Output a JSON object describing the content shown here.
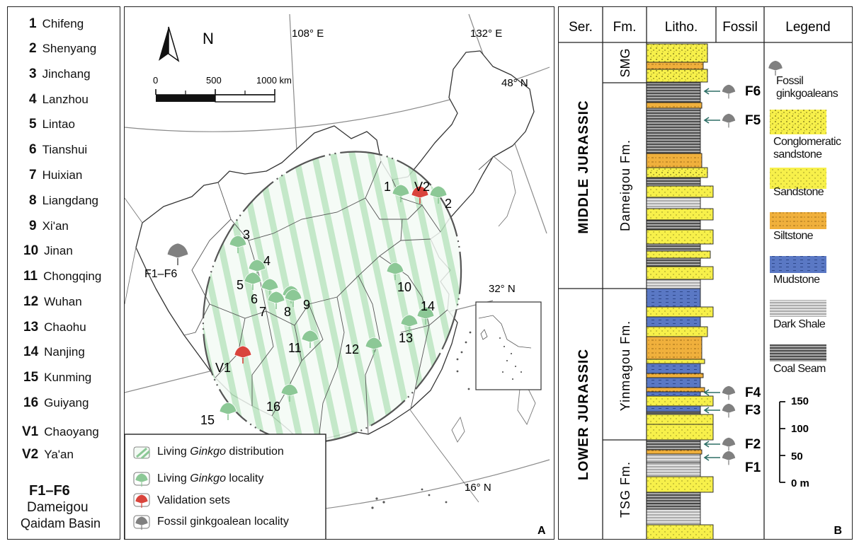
{
  "locality_list": [
    {
      "num": "1",
      "name": "Chifeng"
    },
    {
      "num": "2",
      "name": "Shenyang"
    },
    {
      "num": "3",
      "name": "Jinchang"
    },
    {
      "num": "4",
      "name": "Lanzhou"
    },
    {
      "num": "5",
      "name": "Lintao"
    },
    {
      "num": "6",
      "name": "Tianshui"
    },
    {
      "num": "7",
      "name": "Huixian"
    },
    {
      "num": "8",
      "name": "Liangdang"
    },
    {
      "num": "9",
      "name": "Xi'an"
    },
    {
      "num": "10",
      "name": "Jinan"
    },
    {
      "num": "11",
      "name": "Chongqing"
    },
    {
      "num": "12",
      "name": "Wuhan"
    },
    {
      "num": "13",
      "name": "Chaohu"
    },
    {
      "num": "14",
      "name": "Nanjing"
    },
    {
      "num": "15",
      "name": "Kunming"
    },
    {
      "num": "16",
      "name": "Guiyang"
    },
    {
      "num": "V1",
      "name": "Chaoyang"
    },
    {
      "num": "V2",
      "name": "Ya'an"
    }
  ],
  "fossil_entry": {
    "code": "F1–F6",
    "line1": "Dameigou",
    "line2": "Qaidam Basin"
  },
  "map": {
    "panel_label": "A",
    "north": "N",
    "scale_ticks": [
      "0",
      "500",
      "1000 km"
    ],
    "meridians": [
      "108° E",
      "132° E"
    ],
    "parallels": [
      "48° N",
      "32° N",
      "16° N"
    ],
    "fossil_site_label": "F1–F6",
    "site_labels": [
      "1",
      "2",
      "3",
      "4",
      "5",
      "6",
      "7",
      "8",
      "9",
      "10",
      "11",
      "12",
      "13",
      "14",
      "15",
      "16",
      "V1",
      "V2"
    ],
    "legend": {
      "distribution": "Living",
      "distribution_genus": "Ginkgo",
      "distribution_tail": " distribution",
      "locality": "Living",
      "locality_genus": "Ginkgo",
      "locality_tail": " locality",
      "validation": "Validation sets",
      "fossil": "Fossil ginkgoalean locality"
    },
    "colors": {
      "living": "#8cc896",
      "validation": "#d9443c",
      "fossil": "#808080",
      "hatch": "#b9e4bf"
    }
  },
  "column": {
    "panel_label": "B",
    "headers": [
      "Ser.",
      "Fm.",
      "Litho.",
      "Fossil",
      "Legend"
    ],
    "series": [
      "MIDDLE JURASSIC",
      "LOWER JURASSIC"
    ],
    "formations": [
      "SMG",
      "Dameigou Fm.",
      "Yinmagou Fm.",
      "TSG Fm."
    ],
    "fossils": [
      "F6",
      "F5",
      "F4",
      "F3",
      "F2",
      "F1"
    ],
    "legend_items": [
      {
        "key": "fossil",
        "label": "Fossil ginkgoaleans"
      },
      {
        "key": "cong",
        "label": "Conglomeratic sandstone"
      },
      {
        "key": "sand",
        "label": "Sandstone"
      },
      {
        "key": "silt",
        "label": "Siltstone"
      },
      {
        "key": "mud",
        "label": "Mudstone"
      },
      {
        "key": "shale",
        "label": "Dark Shale"
      },
      {
        "key": "coal",
        "label": "Coal Seam"
      }
    ],
    "scale_ticks": [
      "150",
      "100",
      "50",
      "0 m"
    ],
    "colors": {
      "sand": "#f7f04a",
      "silt": "#f0b03c",
      "mud": "#5a78c4",
      "shale": "#c8c8c8",
      "coal": "#7a7a7a"
    }
  }
}
